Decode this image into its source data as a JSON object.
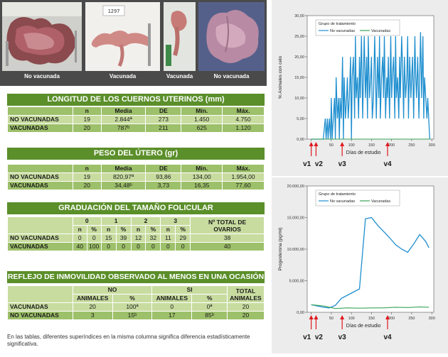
{
  "photos": {
    "captions": [
      "No vacunada",
      "Vacunada",
      "Vacunada",
      "No vacunada"
    ],
    "tag_number": "1297"
  },
  "tables": {
    "t1": {
      "title": "LONGITUD DE LOS CUERNOS UTERINOS (mm)",
      "headers": [
        "n",
        "Media",
        "DE",
        "Mín.",
        "Máx."
      ],
      "rows": [
        {
          "label": "NO VACUNADAS",
          "cells": [
            "19",
            "2.844ª",
            "273",
            "1.450",
            "4.750"
          ]
        },
        {
          "label": "VACUNADAS",
          "cells": [
            "20",
            "787ᵇ",
            "211",
            "625",
            "1.120"
          ]
        }
      ]
    },
    "t2": {
      "title": "PESO DEL ÚTERO (gr)",
      "headers": [
        "n",
        "Media",
        "DE",
        "Mín.",
        "Máx."
      ],
      "rows": [
        {
          "label": "NO VACUNADAS",
          "cells": [
            "19",
            "820,97ª",
            "93,86",
            "134,00",
            "1.954,00"
          ]
        },
        {
          "label": "VACUNADAS",
          "cells": [
            "20",
            "34,48ᵇ",
            "3,73",
            "16,35",
            "77,60"
          ]
        }
      ]
    },
    "t3": {
      "title": "GRADUACIÓN DEL TAMAÑO FOLICULAR",
      "grades": [
        "0",
        "1",
        "2",
        "3"
      ],
      "subheaders": [
        "n",
        "%",
        "n",
        "%",
        "n",
        "%",
        "n",
        "%"
      ],
      "total_header": "Nº TOTAL DE OVARIOS",
      "rows": [
        {
          "label": "NO VACUNADAS",
          "cells": [
            "0",
            "0",
            "15",
            "39",
            "12",
            "32",
            "11",
            "29",
            "38"
          ]
        },
        {
          "label": "VACUNADAS",
          "cells": [
            "40",
            "100",
            "0",
            "0",
            "0",
            "0",
            "0",
            "0",
            "40"
          ]
        }
      ]
    },
    "t4": {
      "title": "REFLEJO DE INMOVILIDAD OBSERVADO AL MENOS EN UNA OCASIÓN",
      "groups": [
        "NO",
        "SI"
      ],
      "subheaders": [
        "ANIMALES",
        "%",
        "ANIMALES",
        "%"
      ],
      "total_header": "TOTAL ANIMALES",
      "rows": [
        {
          "label": "VACUNADAS",
          "cells": [
            "20",
            "100ª",
            "0",
            "0ª",
            "20"
          ]
        },
        {
          "label": "NO VACUNADAS",
          "cells": [
            "3",
            "15ᵇ",
            "17",
            "85ᵇ",
            "20"
          ]
        }
      ]
    }
  },
  "footnote": "En las tablas, diferentes superíndices en la misma columna significa diferencia estadísticamente significativa.",
  "vaccination_labels": {
    "c1": [
      "v1",
      "v2",
      "v3",
      "v4"
    ],
    "c2": [
      "v1",
      "v2",
      "v3",
      "v4"
    ]
  },
  "colors": {
    "no_vacunadas": "#1f8fcf",
    "vacunadas": "#3aa55a",
    "arrow": "#e0181e",
    "table_title": "#5b8f2a"
  },
  "chart_data": [
    {
      "type": "line",
      "ylabel": "% Animales con celo",
      "xlabel": "Días de estudio",
      "ytick_labels": [
        "0,00",
        "5,00",
        "10,00",
        "15,00",
        "20,00",
        "25,00",
        "30,00"
      ],
      "xticks": [
        0,
        50,
        100,
        150,
        200,
        250,
        300
      ],
      "xlim": [
        -10,
        305
      ],
      "ylim": [
        0,
        30
      ],
      "legend": {
        "title": "Grupo de tratamiento",
        "position": "top-left"
      },
      "series": [
        {
          "name": "No vacunadas",
          "x": [
            0,
            20,
            30,
            35,
            37,
            40,
            42,
            45,
            48,
            50,
            52,
            55,
            58,
            60,
            62,
            65,
            68,
            70,
            72,
            75,
            78,
            80,
            82,
            85,
            88,
            90,
            92,
            95,
            98,
            100,
            102,
            105,
            108,
            110,
            112,
            115,
            118,
            120,
            122,
            125,
            128,
            130,
            132,
            135,
            138,
            140,
            142,
            145,
            148,
            150,
            152,
            155,
            158,
            160,
            162,
            165,
            168,
            170,
            172,
            175,
            178,
            180,
            182,
            185,
            188,
            190,
            192,
            195,
            198,
            200,
            202,
            205,
            208,
            210,
            212,
            215,
            218,
            220,
            222,
            225,
            228,
            230,
            232,
            235,
            238,
            240,
            242,
            245,
            248,
            250,
            252,
            255,
            258,
            260,
            262,
            265,
            268,
            270,
            272,
            275,
            278,
            280,
            282,
            285,
            288,
            290,
            295
          ],
          "y": [
            0,
            0,
            0,
            5,
            0,
            5,
            0,
            5,
            0,
            10,
            0,
            5,
            10,
            0,
            15,
            5,
            10,
            0,
            10,
            5,
            20,
            0,
            15,
            5,
            10,
            15,
            5,
            10,
            20,
            0,
            15,
            20,
            5,
            25,
            10,
            15,
            5,
            20,
            10,
            25,
            5,
            15,
            25,
            10,
            20,
            5,
            25,
            10,
            15,
            20,
            5,
            10,
            25,
            15,
            5,
            20,
            10,
            25,
            5,
            15,
            20,
            10,
            25,
            5,
            15,
            10,
            20,
            5,
            25,
            10,
            15,
            20,
            5,
            25,
            10,
            15,
            5,
            20,
            10,
            25,
            15,
            5,
            20,
            10,
            15,
            25,
            5,
            20,
            10,
            15,
            20,
            5,
            25,
            15,
            10,
            20,
            5,
            15,
            26,
            10,
            25,
            5,
            15,
            10,
            5,
            10,
            0
          ]
        },
        {
          "name": "Vacunadas",
          "x": [
            0,
            50,
            100,
            150,
            200,
            250,
            295
          ],
          "y": [
            0,
            0,
            0,
            0,
            0,
            0,
            0
          ]
        }
      ]
    },
    {
      "type": "line",
      "ylabel": "Progesterona (pg/ml)",
      "xlabel": "Días de estudio",
      "ytick_labels": [
        "0,00",
        "5.000,00",
        "10.000,00",
        "15.000,00",
        "20.000,00"
      ],
      "xticks": [
        0,
        50,
        100,
        150,
        200,
        250,
        300
      ],
      "xlim": [
        -10,
        305
      ],
      "ylim": [
        0,
        20000
      ],
      "legend": {
        "title": "Grupo de tratamiento",
        "position": "top-left"
      },
      "series": [
        {
          "name": "No vacunadas",
          "x": [
            0,
            15,
            30,
            45,
            60,
            75,
            90,
            105,
            120,
            135,
            150,
            165,
            180,
            195,
            210,
            225,
            240,
            255,
            270,
            285,
            293
          ],
          "y": [
            1200,
            1000,
            800,
            700,
            1100,
            2200,
            2700,
            3200,
            3700,
            14800,
            15000,
            13800,
            12800,
            11800,
            10700,
            10000,
            9500,
            10800,
            12300,
            11200,
            10200
          ]
        },
        {
          "name": "Vacunadas",
          "x": [
            0,
            30,
            60,
            90,
            120,
            150,
            180,
            210,
            240,
            270,
            293
          ],
          "y": [
            1200,
            1000,
            600,
            700,
            650,
            700,
            700,
            800,
            750,
            850,
            800
          ]
        }
      ]
    }
  ]
}
